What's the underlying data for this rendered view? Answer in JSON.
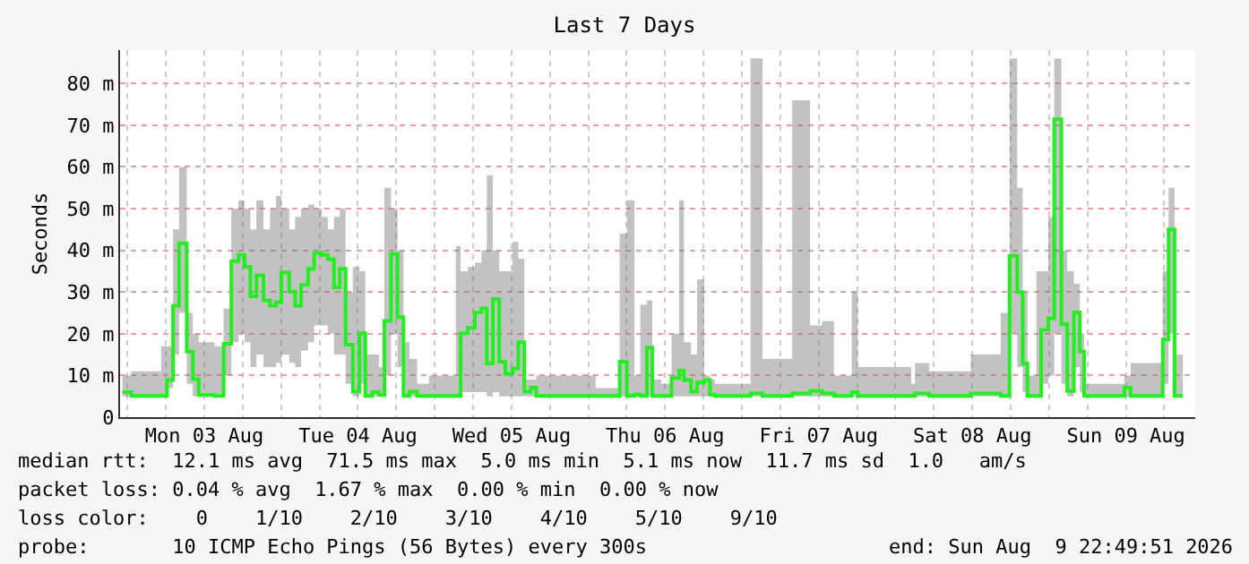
{
  "chart_data": {
    "type": "step",
    "title": "Last 7 Days",
    "ylabel": "Seconds",
    "x": [
      "2026-08-02T23:12",
      "2026-08-03T00:36",
      "2026-08-03T05:15",
      "2026-08-03T06:11",
      "2026-08-03T07:07",
      "2026-08-03T08:03",
      "2026-08-03T09:15",
      "2026-08-03T10:12",
      "2026-08-03T11:07",
      "2026-08-03T12:14",
      "2026-08-03T13:37",
      "2026-08-03T15:01",
      "2026-08-03T16:13",
      "2026-08-03T17:20",
      "2026-08-03T18:17",
      "2026-08-03T19:12",
      "2026-08-03T20:08",
      "2026-08-03T21:15",
      "2026-08-03T22:16",
      "2026-08-03T23:12",
      "2026-08-04T00:02",
      "2026-08-04T01:16",
      "2026-08-04T02:11",
      "2026-08-04T03:07",
      "2026-08-04T04:13",
      "2026-08-04T05:10",
      "2026-08-04T06:22",
      "2026-08-04T07:18",
      "2026-08-04T08:15",
      "2026-08-04T09:10",
      "2026-08-04T10:05",
      "2026-08-04T11:12",
      "2026-08-04T12:14",
      "2026-08-04T13:09",
      "2026-08-04T14:16",
      "2026-08-04T15:18",
      "2026-08-04T16:08",
      "2026-08-04T17:10",
      "2026-08-04T18:11",
      "2026-08-04T19:07",
      "2026-08-04T20:03",
      "2026-08-04T21:15",
      "2026-08-04T23:07",
      "2026-08-05T03:18",
      "2026-08-05T04:03",
      "2026-08-05T05:10",
      "2026-08-05T06:17",
      "2026-08-05T07:18",
      "2026-08-05T08:08",
      "2026-08-05T09:05",
      "2026-08-05T10:05",
      "2026-08-05T11:02",
      "2026-08-05T12:09",
      "2026-08-05T13:04",
      "2026-08-05T14:00",
      "2026-08-05T15:01",
      "2026-08-05T15:52",
      "2026-08-06T01:09",
      "2026-08-06T04:54",
      "2026-08-06T06:01",
      "2026-08-06T07:13",
      "2026-08-06T08:08",
      "2026-08-06T09:10",
      "2026-08-06T10:00",
      "2026-08-06T11:24",
      "2026-08-06T13:00",
      "2026-08-06T14:12",
      "2026-08-06T14:56",
      "2026-08-06T16:03",
      "2026-08-06T16:59",
      "2026-08-06T18:06",
      "2026-08-06T19:01",
      "2026-08-06T19:46",
      "2026-08-07T01:21",
      "2026-08-07T03:13",
      "2026-08-07T07:51",
      "2026-08-07T10:39",
      "2026-08-07T12:32",
      "2026-08-07T14:23",
      "2026-08-07T17:10",
      "2026-08-07T18:06",
      "2026-08-08T02:28",
      "2026-08-08T03:02",
      "2026-08-08T05:16",
      "2026-08-08T11:46",
      "2026-08-08T16:26",
      "2026-08-08T17:49",
      "2026-08-08T19:01",
      "2026-08-08T19:52",
      "2026-08-08T20:37",
      "2026-08-08T22:01",
      "2026-08-08T22:46",
      "2026-08-08T23:53",
      "2026-08-09T00:48",
      "2026-08-09T01:55",
      "2026-08-09T02:50",
      "2026-08-09T03:52",
      "2026-08-09T04:48",
      "2026-08-09T05:28",
      "2026-08-09T11:03",
      "2026-08-09T11:46",
      "2026-08-09T12:44",
      "2026-08-09T16:38",
      "2026-08-09T17:45",
      "2026-08-09T18:40",
      "2026-08-09T19:36",
      "2026-08-09T20:54"
    ],
    "series": [
      {
        "color": "#22ee22",
        "values": [
          6.0,
          5.1,
          5.1,
          8.9,
          26.7,
          41.7,
          15.7,
          9.1,
          5.3,
          5.3,
          5.1,
          17.6,
          37.4,
          38.9,
          36.1,
          29.0,
          34.0,
          28.0,
          26.7,
          27.6,
          34.7,
          30.1,
          26.7,
          31.7,
          35.6,
          39.4,
          38.9,
          37.9,
          31.1,
          35.6,
          17.4,
          6.1,
          20.1,
          5.1,
          6.0,
          5.3,
          23.1,
          39.1,
          24.0,
          5.1,
          6.1,
          5.1,
          5.1,
          5.1,
          20.1,
          21.4,
          25.1,
          26.1,
          12.9,
          28.3,
          13.3,
          10.4,
          11.7,
          18.0,
          6.1,
          7.1,
          5.1,
          5.1,
          13.3,
          5.1,
          5.4,
          5.1,
          16.7,
          5.1,
          5.1,
          9.4,
          11.1,
          8.9,
          6.1,
          8.3,
          8.9,
          5.4,
          5.1,
          5.7,
          5.1,
          5.7,
          6.3,
          5.7,
          5.1,
          6.0,
          5.1,
          5.1,
          5.7,
          5.1,
          5.7,
          5.1,
          38.7,
          30.0,
          12.9,
          5.1,
          5.1,
          20.9,
          23.7,
          71.4,
          22.3,
          6.3,
          25.1,
          15.7,
          5.1,
          5.1,
          7.1,
          5.1,
          5.1,
          18.6,
          45.0,
          5.1,
          5.1
        ],
        "lower": [
          5,
          5,
          5,
          7,
          15,
          25,
          8,
          5,
          5,
          5,
          5,
          10,
          18,
          20,
          18,
          12,
          15,
          12,
          12,
          13,
          15,
          13,
          12,
          16,
          18,
          22,
          22,
          20,
          15,
          15,
          8,
          5,
          8,
          5,
          5,
          5,
          10,
          20,
          12,
          5,
          5,
          5,
          5,
          5,
          6,
          6,
          6,
          6,
          5,
          6,
          5,
          5,
          5,
          5,
          5,
          5,
          5,
          5,
          5,
          5,
          5,
          5,
          5,
          5,
          5,
          5,
          5,
          5,
          5,
          5,
          5,
          5,
          5,
          5,
          5,
          5,
          5,
          5,
          5,
          5,
          5,
          5,
          5,
          5,
          5,
          5,
          20,
          12,
          6,
          5,
          5,
          8,
          10,
          20,
          8,
          5,
          12,
          6,
          5,
          5,
          5,
          5,
          5,
          8,
          20,
          5,
          5
        ],
        "upper": [
          10,
          11,
          17,
          17,
          45,
          60,
          25,
          20,
          18,
          18,
          17,
          26,
          50,
          52,
          50,
          45,
          52,
          45,
          50,
          53,
          50,
          45,
          48,
          50,
          51,
          50,
          48,
          45,
          48,
          50,
          30,
          36,
          35,
          15,
          15,
          12,
          55,
          50,
          40,
          18,
          14,
          8,
          10,
          41,
          35,
          36,
          37,
          40,
          58,
          40,
          35,
          35,
          42,
          38,
          9,
          9,
          10,
          7,
          44,
          52,
          10,
          27,
          28,
          9,
          8,
          20,
          52,
          18,
          15,
          33,
          10,
          9,
          8,
          86,
          14,
          76,
          22,
          23,
          10,
          30,
          12,
          8,
          13,
          11,
          15,
          25,
          86,
          55,
          30,
          10,
          35,
          35,
          48,
          86,
          40,
          35,
          32,
          20,
          8,
          8,
          10,
          13,
          13,
          35,
          55,
          15,
          8
        ]
      }
    ],
    "xlim": [
      "2026-08-02T22:50",
      "2026-08-09T22:50"
    ],
    "xticks": [
      {
        "value": "2026-08-03T12:00",
        "label": "Mon 03 Aug"
      },
      {
        "value": "2026-08-04T12:00",
        "label": "Tue 04 Aug"
      },
      {
        "value": "2026-08-05T12:00",
        "label": "Wed 05 Aug"
      },
      {
        "value": "2026-08-06T12:00",
        "label": "Thu 06 Aug"
      },
      {
        "value": "2026-08-07T12:00",
        "label": "Fri 07 Aug"
      },
      {
        "value": "2026-08-08T12:00",
        "label": "Sat 08 Aug"
      },
      {
        "value": "2026-08-09T12:00",
        "label": "Sun 09 Aug"
      }
    ],
    "ylim": [
      0,
      88
    ],
    "yticks": [
      0,
      {
        "value": 10,
        "label": "10 m"
      },
      {
        "value": 20,
        "label": "20 m"
      },
      {
        "value": 30,
        "label": "30 m"
      },
      {
        "value": 40,
        "label": "40 m"
      },
      {
        "value": 50,
        "label": "50 m"
      },
      {
        "value": 60,
        "label": "60 m"
      },
      {
        "value": 70,
        "label": "70 m"
      },
      {
        "value": 80,
        "label": "80 m"
      }
    ],
    "grid": true,
    "marker": "none",
    "line_style": "solid",
    "annotations": [
      "median rtt:  12.1 ms avg  71.5 ms max  5.0 ms min  5.1 ms now  11.7 ms sd  1.0   am/s",
      "packet loss: 0.04 % avg  1.67 % max  0.00 % min  0.00 % now",
      "loss color:    0    1/10    2/10    3/10    4/10    5/10    9/10",
      "probe:       10 ICMP Echo Pings (56 Bytes) every 300s",
      "end: Sun Aug  9 22:49:51 2026"
    ]
  }
}
